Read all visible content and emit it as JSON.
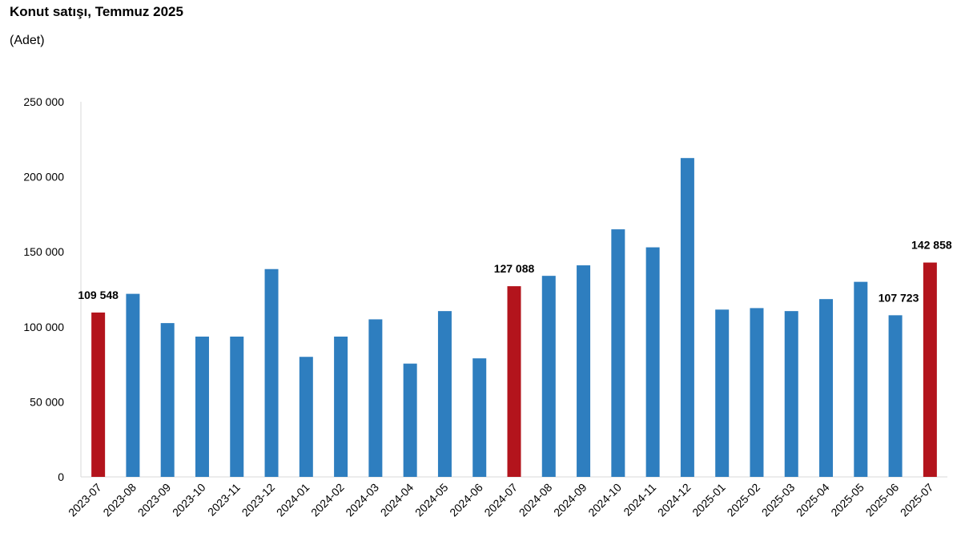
{
  "header": {
    "title": "Konut satışı, Temmuz 2025",
    "subtitle": "(Adet)"
  },
  "colors": {
    "bar": "#2e7ebf",
    "highlight": "#b3141c",
    "axis": "#d9d9d9",
    "text": "#000000"
  },
  "chart_data": {
    "type": "bar",
    "title": "Konut satışı, Temmuz 2025",
    "subtitle": "(Adet)",
    "categories": [
      "2023-07",
      "2023-08",
      "2023-09",
      "2023-10",
      "2023-11",
      "2023-12",
      "2024-01",
      "2024-02",
      "2024-03",
      "2024-04",
      "2024-05",
      "2024-06",
      "2024-07",
      "2024-08",
      "2024-09",
      "2024-10",
      "2024-11",
      "2024-12",
      "2025-01",
      "2025-02",
      "2025-03",
      "2025-04",
      "2025-05",
      "2025-06",
      "2025-07"
    ],
    "values": [
      109548,
      122000,
      102500,
      93500,
      93500,
      138500,
      80000,
      93500,
      105000,
      75500,
      110500,
      79000,
      127088,
      134000,
      141000,
      165000,
      153000,
      212500,
      111500,
      112500,
      110500,
      118500,
      130000,
      107723,
      142858
    ],
    "highlighted": [
      "2023-07",
      "2024-07",
      "2025-07"
    ],
    "data_labels": [
      {
        "category": "2023-07",
        "text": "109 548"
      },
      {
        "category": "2024-07",
        "text": "127 088"
      },
      {
        "category": "2025-06",
        "text": "107 723"
      },
      {
        "category": "2025-07",
        "text": "142 858"
      }
    ],
    "ylim": [
      0,
      250000
    ],
    "yticks": [
      {
        "value": 0,
        "label": "0"
      },
      {
        "value": 50000,
        "label": "50 000"
      },
      {
        "value": 100000,
        "label": "100 000"
      },
      {
        "value": 150000,
        "label": "150 000"
      },
      {
        "value": 200000,
        "label": "200 000"
      },
      {
        "value": 250000,
        "label": "250 000"
      }
    ],
    "grid": false,
    "xlabel": "",
    "ylabel": ""
  }
}
